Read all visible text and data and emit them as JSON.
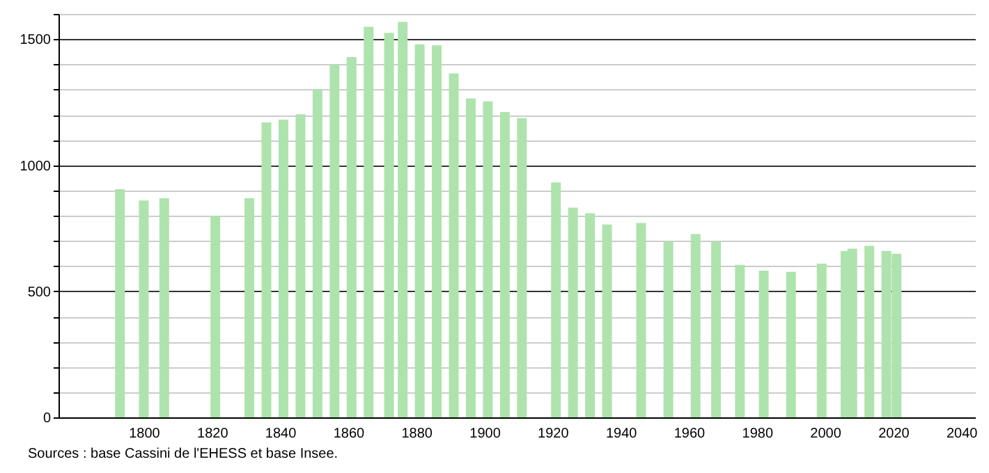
{
  "chart_data": {
    "type": "bar",
    "x": [
      1793,
      1800,
      1806,
      1821,
      1831,
      1836,
      1841,
      1846,
      1851,
      1856,
      1861,
      1866,
      1872,
      1876,
      1881,
      1886,
      1891,
      1896,
      1901,
      1906,
      1911,
      1921,
      1926,
      1931,
      1936,
      1946,
      1954,
      1962,
      1968,
      1975,
      1982,
      1990,
      1999,
      2006,
      2008,
      2013,
      2018,
      2021
    ],
    "values": [
      905,
      860,
      869,
      800,
      869,
      1170,
      1181,
      1202,
      1302,
      1400,
      1429,
      1549,
      1525,
      1568,
      1479,
      1475,
      1364,
      1265,
      1253,
      1211,
      1187,
      932,
      832,
      810,
      765,
      771,
      697,
      727,
      697,
      605,
      582,
      577,
      610,
      660,
      669,
      680,
      660,
      649
    ],
    "color": "#aee3ae",
    "xlim": [
      1777,
      2042
    ],
    "xticks": [
      1800,
      1820,
      1840,
      1860,
      1880,
      1900,
      1920,
      1940,
      1960,
      1980,
      2000,
      2020,
      2040
    ],
    "ylim": [
      0,
      1600
    ],
    "yticks": [
      0,
      {
        "value": 100,
        "label": null
      },
      {
        "value": 200,
        "label": null
      },
      {
        "value": 300,
        "label": null
      },
      {
        "value": 400,
        "label": null
      },
      500,
      {
        "value": 600,
        "label": null
      },
      {
        "value": 700,
        "label": null
      },
      {
        "value": 800,
        "label": null
      },
      {
        "value": 900,
        "label": null
      },
      1000,
      {
        "value": 1100,
        "label": null
      },
      {
        "value": 1200,
        "label": null
      },
      {
        "value": 1300,
        "label": null
      },
      {
        "value": 1400,
        "label": null
      },
      1500,
      {
        "value": 1600,
        "label": null
      }
    ],
    "grid": "y",
    "annotations": [
      "Sources : base Cassini de l'EHESS et base Insee."
    ]
  }
}
